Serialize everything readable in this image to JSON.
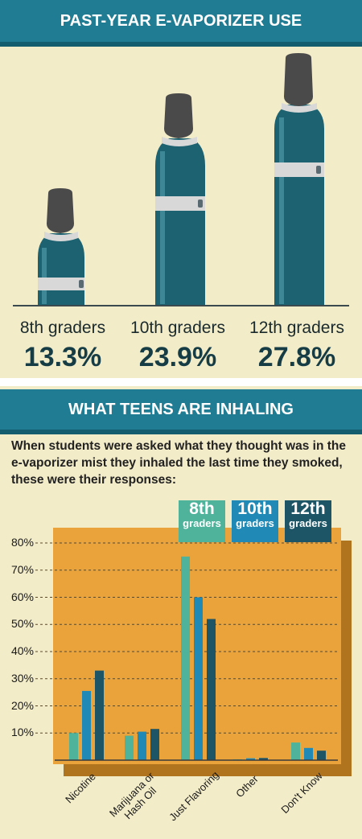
{
  "section1": {
    "title": "PAST-YEAR E-VAPORIZER USE",
    "items": [
      {
        "label": "8th graders",
        "value": "13.3%"
      },
      {
        "label": "10th graders",
        "value": "23.9%"
      },
      {
        "label": "12th graders",
        "value": "27.8%"
      }
    ]
  },
  "section2": {
    "title": "WHAT TEENS ARE INHALING",
    "intro": "When students were asked what they thought was in the e-vaporizer mist they inhaled the last time they smoked, these were their responses:"
  },
  "legend": [
    {
      "line1": "8th",
      "line2": "graders",
      "color": "#4eb39a"
    },
    {
      "line1": "10th",
      "line2": "graders",
      "color": "#2189b5"
    },
    {
      "line1": "12th",
      "line2": "graders",
      "color": "#1d5566"
    }
  ],
  "colors": {
    "bg": "#f3ecc9",
    "banner": "#1f7c92",
    "chartBg": "#e9a33a",
    "chartShadow": "#b0741f",
    "bottle": "#1d6271",
    "cap": "#4a4a4a"
  },
  "chart_data": {
    "type": "bar",
    "categories": [
      "Nicotine",
      "Marijuana or Hash Oil",
      "Just Flavoring",
      "Other",
      "Don't Know"
    ],
    "series": [
      {
        "name": "8th graders",
        "values": [
          10,
          9,
          75,
          0.3,
          6.5
        ]
      },
      {
        "name": "10th graders",
        "values": [
          25.5,
          10.5,
          60,
          0.7,
          4.5
        ]
      },
      {
        "name": "12th graders",
        "values": [
          33,
          11.5,
          52,
          0.8,
          3.5
        ]
      }
    ],
    "yticks": [
      "10%",
      "20%",
      "30%",
      "40%",
      "50%",
      "60%",
      "70%",
      "80%"
    ],
    "ylim": [
      0,
      80
    ],
    "grid": true,
    "legend_position": "top-right"
  }
}
